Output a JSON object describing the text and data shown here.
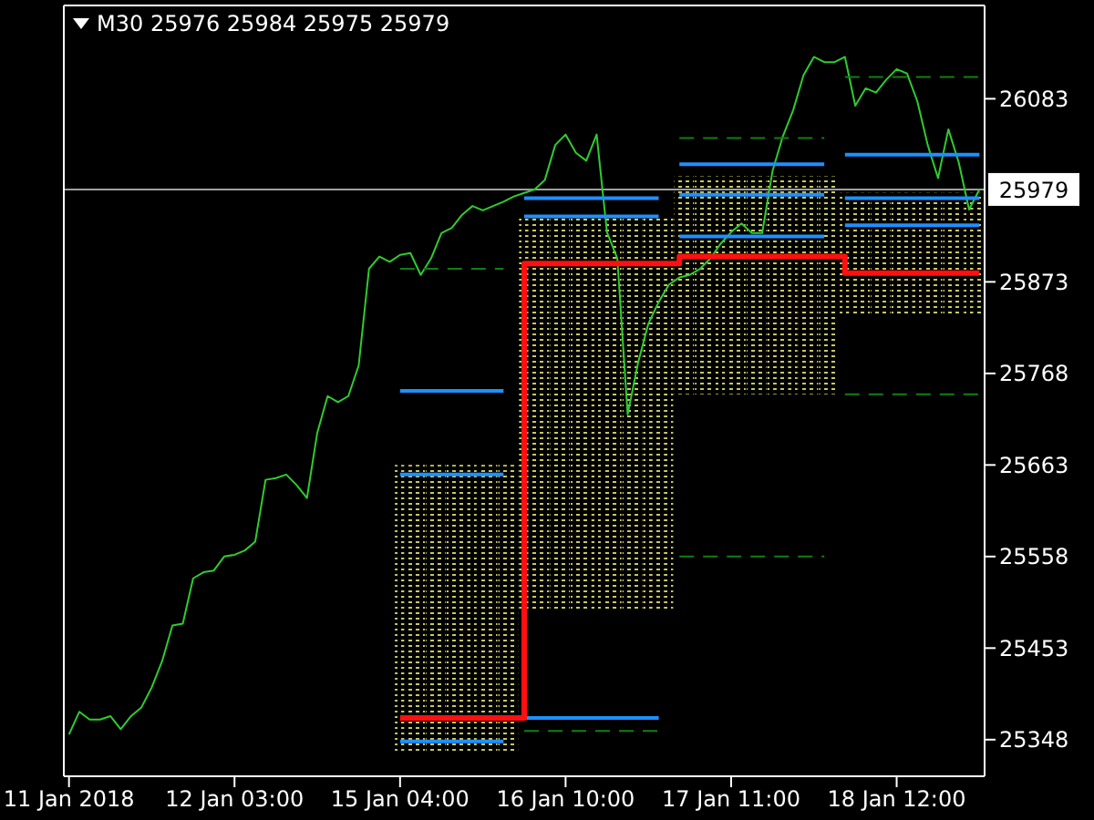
{
  "chart_data": {
    "type": "line",
    "title": "M30  25976 25984 25975 25979",
    "categories": [
      "11 Jan 2018",
      null,
      null,
      null,
      null,
      null,
      null,
      null,
      null,
      null,
      null,
      null,
      null,
      null,
      null,
      null,
      "12 Jan 03:00",
      null,
      null,
      null,
      null,
      null,
      null,
      null,
      null,
      null,
      null,
      null,
      null,
      null,
      null,
      null,
      "15 Jan 04:00",
      null,
      null,
      null,
      null,
      null,
      null,
      null,
      null,
      null,
      null,
      null,
      null,
      null,
      null,
      null,
      "16 Jan 10:00",
      null,
      null,
      null,
      null,
      null,
      null,
      null,
      null,
      null,
      null,
      null,
      null,
      null,
      null,
      null,
      "17 Jan 11:00",
      null,
      null,
      null,
      null,
      null,
      null,
      null,
      null,
      null,
      null,
      null,
      null,
      null,
      null,
      null,
      "18 Jan 12:00",
      null,
      null,
      null,
      null,
      null,
      null,
      null,
      null
    ],
    "ylim": [
      25306,
      26190
    ],
    "yticks": [
      25348,
      25453,
      25558,
      25663,
      25768,
      25873,
      26083
    ],
    "ref_lines": [
      {
        "axis": "y",
        "value": 25979,
        "label": "25979",
        "color": "#a0a0a0"
      }
    ],
    "grid": false,
    "marker": "none",
    "series": [
      {
        "type": "bar",
        "color": "#c8c864",
        "values": [
          null,
          null,
          null,
          null,
          null,
          null,
          null,
          null,
          null,
          null,
          null,
          null,
          null,
          null,
          null,
          null,
          null,
          null,
          null,
          null,
          null,
          null,
          null,
          null,
          null,
          null,
          null,
          null,
          null,
          null,
          null,
          null,
          330,
          330,
          330,
          330,
          330,
          330,
          330,
          330,
          330,
          330,
          330,
          330,
          454,
          454,
          454,
          454,
          454,
          454,
          454,
          454,
          454,
          454,
          454,
          454,
          454,
          454,
          454,
          250,
          250,
          250,
          250,
          250,
          250,
          250,
          250,
          250,
          250,
          250,
          250,
          250,
          250,
          250,
          250,
          142,
          142,
          142,
          142,
          142,
          142,
          142,
          142,
          142,
          142,
          142,
          142,
          142,
          142
        ],
        "base": [
          null,
          null,
          null,
          null,
          null,
          null,
          null,
          null,
          null,
          null,
          null,
          null,
          null,
          null,
          null,
          null,
          null,
          null,
          null,
          null,
          null,
          null,
          null,
          null,
          null,
          null,
          null,
          null,
          null,
          null,
          null,
          null,
          25333,
          25333,
          25333,
          25333,
          25333,
          25333,
          25333,
          25333,
          25333,
          25333,
          25333,
          25333,
          25494,
          25494,
          25494,
          25494,
          25494,
          25494,
          25494,
          25494,
          25494,
          25494,
          25494,
          25494,
          25494,
          25494,
          25494,
          25744,
          25744,
          25744,
          25744,
          25744,
          25744,
          25744,
          25744,
          25744,
          25744,
          25744,
          25744,
          25744,
          25744,
          25744,
          25744,
          25833,
          25833,
          25833,
          25833,
          25833,
          25833,
          25833,
          25833,
          25833,
          25833,
          25833,
          25833,
          25833,
          25833
        ]
      },
      {
        "color": "#2ecc2e",
        "values": [
          25354,
          25380,
          25371,
          25371,
          25375,
          25360,
          25375,
          25385,
          25408,
          25438,
          25479,
          25481,
          25533,
          25540,
          25542,
          25558,
          25560,
          25565,
          25575,
          25646,
          25648,
          25652,
          25640,
          25625,
          25700,
          25742,
          25735,
          25742,
          25777,
          25888,
          25902,
          25896,
          25904,
          25906,
          25881,
          25900,
          25929,
          25935,
          25950,
          25960,
          25955,
          25960,
          25965,
          25971,
          25975,
          25979,
          25990,
          26030,
          26042,
          26021,
          26012,
          26042,
          25930,
          25900,
          25721,
          25780,
          25825,
          25850,
          25870,
          25878,
          25881,
          25888,
          25900,
          25917,
          25930,
          25940,
          25929,
          25929,
          26000,
          26040,
          26070,
          26110,
          26131,
          26125,
          26125,
          26131,
          26075,
          26095,
          26090,
          26105,
          26117,
          26112,
          26080,
          26030,
          25992,
          26048,
          26010,
          25956,
          25979
        ]
      },
      {
        "color": "#1e90ff",
        "values": [
          null,
          null,
          null,
          null,
          null,
          null,
          null,
          null,
          null,
          null,
          null,
          null,
          null,
          null,
          null,
          null,
          null,
          null,
          null,
          null,
          null,
          null,
          null,
          null,
          null,
          null,
          null,
          null,
          null,
          null,
          null,
          null,
          25748,
          25748,
          25748,
          25748,
          25748,
          25748,
          25748,
          25748,
          25748,
          25748,
          25748,
          null,
          25969,
          25969,
          25969,
          25969,
          25969,
          25969,
          25969,
          25969,
          25969,
          25969,
          25969,
          25969,
          25969,
          25969,
          null,
          26008,
          26008,
          26008,
          26008,
          26008,
          26008,
          26008,
          26008,
          26008,
          26008,
          26008,
          26008,
          26008,
          26008,
          26008,
          null,
          26019,
          26019,
          26019,
          26019,
          26019,
          26019,
          26019,
          26019,
          26019,
          26019,
          26019,
          26019,
          26019,
          26019
        ]
      },
      {
        "color": "#1e90ff",
        "values": [
          null,
          null,
          null,
          null,
          null,
          null,
          null,
          null,
          null,
          null,
          null,
          null,
          null,
          null,
          null,
          null,
          null,
          null,
          null,
          null,
          null,
          null,
          null,
          null,
          null,
          null,
          null,
          null,
          null,
          null,
          null,
          null,
          25652,
          25652,
          25652,
          25652,
          25652,
          25652,
          25652,
          25652,
          25652,
          25652,
          25652,
          null,
          25948,
          25948,
          25948,
          25948,
          25948,
          25948,
          25948,
          25948,
          25948,
          25948,
          25948,
          25948,
          25948,
          25948,
          null,
          25973,
          25973,
          25973,
          25973,
          25973,
          25973,
          25973,
          25973,
          25973,
          25973,
          25973,
          25973,
          25973,
          25973,
          25973,
          null,
          25969,
          25969,
          25969,
          25969,
          25969,
          25969,
          25969,
          25969,
          25969,
          25969,
          25969,
          25969,
          25969,
          25969
        ]
      },
      {
        "color": "#1e90ff",
        "values": [
          null,
          null,
          null,
          null,
          null,
          null,
          null,
          null,
          null,
          null,
          null,
          null,
          null,
          null,
          null,
          null,
          null,
          null,
          null,
          null,
          null,
          null,
          null,
          null,
          null,
          null,
          null,
          null,
          null,
          null,
          null,
          null,
          25346,
          25346,
          25346,
          25346,
          25346,
          25346,
          25346,
          25346,
          25346,
          25346,
          25346,
          null,
          25373,
          25373,
          25373,
          25373,
          25373,
          25373,
          25373,
          25373,
          25373,
          25373,
          25373,
          25373,
          25373,
          25373,
          null,
          25925,
          25925,
          25925,
          25925,
          25925,
          25925,
          25925,
          25925,
          25925,
          25925,
          25925,
          25925,
          25925,
          25925,
          25925,
          null,
          25938,
          25938,
          25938,
          25938,
          25938,
          25938,
          25938,
          25938,
          25938,
          25938,
          25938,
          25938,
          25938,
          25938
        ]
      },
      {
        "line_style": "dashed",
        "color": "#108010",
        "values": [
          null,
          null,
          null,
          null,
          null,
          null,
          null,
          null,
          null,
          null,
          null,
          null,
          null,
          null,
          null,
          null,
          null,
          null,
          null,
          null,
          null,
          null,
          null,
          null,
          null,
          null,
          null,
          null,
          null,
          null,
          null,
          null,
          25888,
          25888,
          25888,
          25888,
          25888,
          25888,
          25888,
          25888,
          25888,
          25888,
          25888,
          null,
          null,
          null,
          null,
          null,
          null,
          null,
          null,
          null,
          null,
          null,
          null,
          null,
          null,
          null,
          null,
          26038,
          26038,
          26038,
          26038,
          26038,
          26038,
          26038,
          26038,
          26038,
          26038,
          26038,
          26038,
          26038,
          26038,
          26038,
          null,
          26108,
          26108,
          26108,
          26108,
          26108,
          26108,
          26108,
          26108,
          26108,
          26108,
          26108,
          26108,
          26108,
          26108
        ]
      },
      {
        "line_style": "dashed",
        "color": "#108010",
        "values": [
          null,
          null,
          null,
          null,
          null,
          null,
          null,
          null,
          null,
          null,
          null,
          null,
          null,
          null,
          null,
          null,
          null,
          null,
          null,
          null,
          null,
          null,
          null,
          null,
          null,
          null,
          null,
          null,
          null,
          null,
          null,
          null,
          null,
          null,
          null,
          null,
          null,
          null,
          null,
          null,
          null,
          null,
          null,
          null,
          25358,
          25358,
          25358,
          25358,
          25358,
          25358,
          25358,
          25358,
          25358,
          25358,
          25358,
          25358,
          25358,
          25358,
          null,
          25558,
          25558,
          25558,
          25558,
          25558,
          25558,
          25558,
          25558,
          25558,
          25558,
          25558,
          25558,
          25558,
          25558,
          25558,
          null,
          25744,
          25744,
          25744,
          25744,
          25744,
          25744,
          25744,
          25744,
          25744,
          25744,
          25744,
          25744,
          25744,
          25744
        ]
      },
      {
        "type": "step",
        "color": "#ff1010",
        "values": [
          null,
          null,
          null,
          null,
          null,
          null,
          null,
          null,
          null,
          null,
          null,
          null,
          null,
          null,
          null,
          null,
          null,
          null,
          null,
          null,
          null,
          null,
          null,
          null,
          null,
          null,
          null,
          null,
          null,
          null,
          null,
          null,
          25373,
          25373,
          25373,
          25373,
          25373,
          25373,
          25373,
          25373,
          25373,
          25373,
          25373,
          25373,
          25894,
          25894,
          25894,
          25894,
          25894,
          25894,
          25894,
          25894,
          25894,
          25894,
          25894,
          25894,
          25894,
          25894,
          25894,
          25902,
          25902,
          25902,
          25902,
          25902,
          25902,
          25902,
          25902,
          25902,
          25902,
          25902,
          25902,
          25902,
          25902,
          25902,
          25902,
          25883,
          25883,
          25883,
          25883,
          25883,
          25883,
          25883,
          25883,
          25883,
          25883,
          25883,
          25883,
          25883,
          25883
        ]
      }
    ]
  }
}
